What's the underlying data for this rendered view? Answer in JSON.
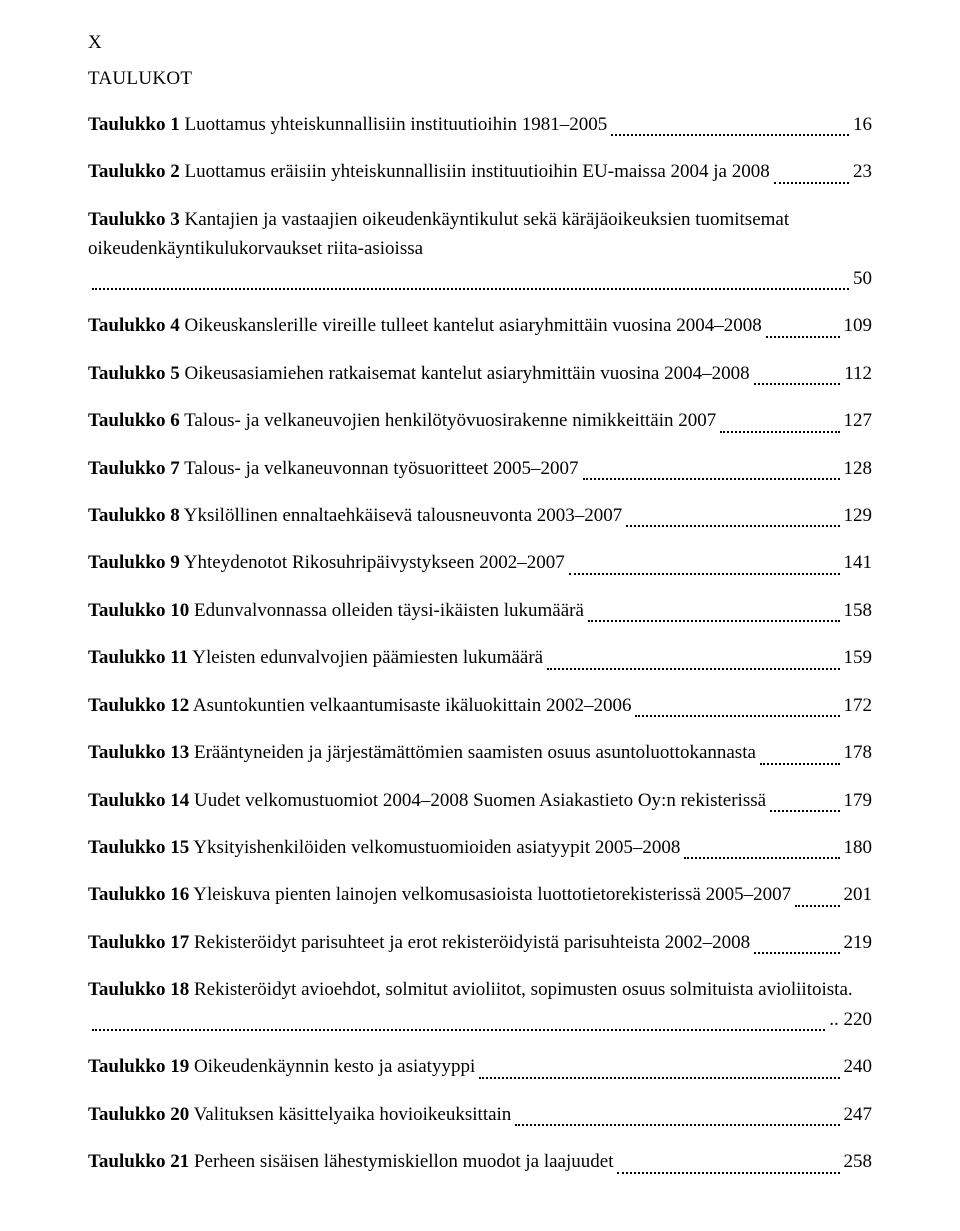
{
  "page_marker": "X",
  "heading": "TAULUKOT",
  "entries": [
    {
      "label": "Taulukko 1",
      "title": " Luottamus yhteiskunnallisiin instituutioihin 1981–2005",
      "page": "16"
    },
    {
      "label": "Taulukko 2",
      "title": " Luottamus eräisiin yhteiskunnallisiin instituutioihin EU-maissa 2004 ja 2008",
      "page": "23"
    },
    {
      "label": "Taulukko 3",
      "title": " Kantajien ja vastaajien oikeudenkäyntikulut sekä käräjäoikeuksien tuomitsemat oikeudenkäyntikulukorvaukset riita-asioissa",
      "page": "50"
    },
    {
      "label": "Taulukko 4",
      "title": " Oikeuskanslerille vireille tulleet kantelut asiaryhmittäin vuosina 2004–2008",
      "page": "109"
    },
    {
      "label": "Taulukko 5",
      "title": " Oikeusasiamiehen ratkaisemat kantelut asiaryhmittäin vuosina 2004–2008",
      "page": "112"
    },
    {
      "label": "Taulukko 6",
      "title": " Talous- ja velkaneuvojien henkilötyövuosirakenne nimikkeittäin 2007",
      "page": "127"
    },
    {
      "label": "Taulukko 7",
      "title": " Talous- ja velkaneuvonnan työsuoritteet 2005–2007",
      "page": "128"
    },
    {
      "label": "Taulukko 8",
      "title": " Yksilöllinen ennaltaehkäisevä talousneuvonta 2003–2007",
      "page": "129"
    },
    {
      "label": "Taulukko 9",
      "title": " Yhteydenotot Rikosuhripäivystykseen 2002–2007",
      "page": "141"
    },
    {
      "label": "Taulukko 10",
      "title": " Edunvalvonnassa olleiden täysi-ikäisten lukumäärä",
      "page": "158"
    },
    {
      "label": "Taulukko 11",
      "title": " Yleisten edunvalvojien päämiesten lukumäärä",
      "page": "159"
    },
    {
      "label": "Taulukko 12",
      "title": " Asuntokuntien velkaantumisaste ikäluokittain 2002–2006",
      "page": "172"
    },
    {
      "label": "Taulukko 13",
      "title": " Erääntyneiden ja järjestämättömien saamisten osuus asuntoluottokannasta",
      "page": "178"
    },
    {
      "label": "Taulukko 14",
      "title": " Uudet velkomustuomiot 2004–2008 Suomen Asiakastieto Oy:n rekisterissä",
      "page": "179"
    },
    {
      "label": "Taulukko 15",
      "title": " Yksityishenkilöiden velkomustuomioiden asiatyypit 2005–2008",
      "page": "180"
    },
    {
      "label": "Taulukko 16",
      "title": " Yleiskuva pienten lainojen velkomusasioista luottotietorekisterissä 2005–2007",
      "page": "201"
    },
    {
      "label": "Taulukko 17",
      "title": " Rekisteröidyt parisuhteet ja erot rekisteröidyistä parisuhteista 2002–2008",
      "page": "219"
    },
    {
      "label": "Taulukko 18",
      "title": " Rekisteröidyt avioehdot, solmitut avioliitot, sopimusten osuus solmituista avioliitoista. ",
      "page": ".. 220"
    },
    {
      "label": "Taulukko 19",
      "title": " Oikeudenkäynnin kesto ja asiatyyppi",
      "page": "240"
    },
    {
      "label": "Taulukko 20",
      "title": " Valituksen käsittelyaika hovioikeuksittain",
      "page": "247"
    },
    {
      "label": "Taulukko 21",
      "title": " Perheen sisäisen lähestymiskiellon muodot ja laajuudet",
      "page": "258"
    }
  ]
}
